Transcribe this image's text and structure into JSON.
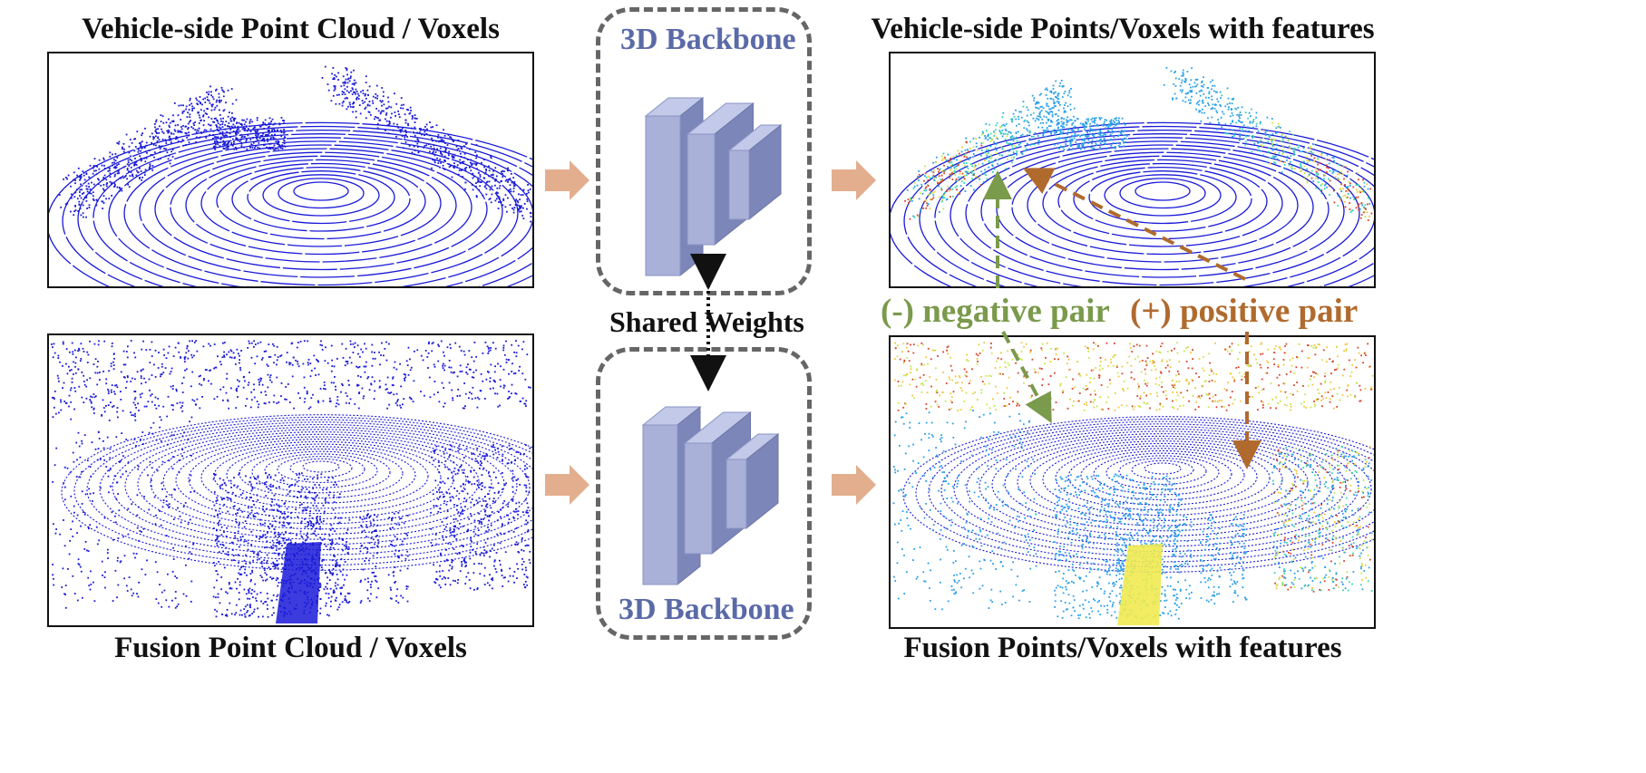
{
  "titles": {
    "top_left": "Vehicle-side Point Cloud / Voxels",
    "bottom_left": "Fusion Point Cloud / Voxels",
    "top_right": "Vehicle-side Points/Voxels with features",
    "bottom_right": "Fusion Points/Voxels with features"
  },
  "backbone": {
    "top_label": "3D Backbone",
    "bottom_label": "3D Backbone",
    "shared_label": "Shared Weights"
  },
  "pairs": {
    "negative_label": "(-) negative pair",
    "positive_label": "(+) positive pair"
  },
  "colors": {
    "point_blue": "#1a1ad8",
    "box_face": "#a9b1d9",
    "arrow_fill": "#e3ae8e",
    "negative_green": "#7a9a4c",
    "positive_brown": "#b06a2e",
    "dashed_gray": "#666666"
  }
}
